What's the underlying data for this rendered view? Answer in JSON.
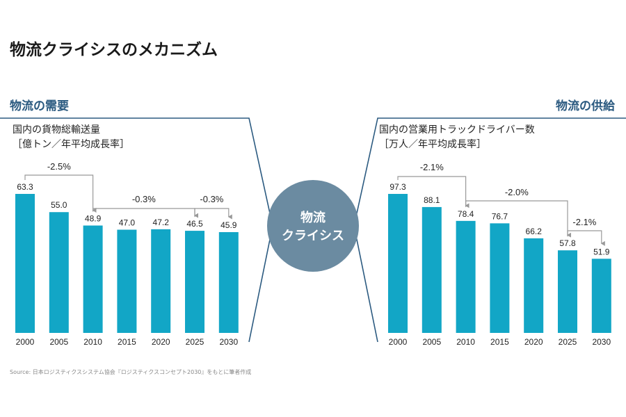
{
  "title": "物流クライシスのメカニズム",
  "left_section": "物流の需要",
  "right_section": "物流の供給",
  "center_label": [
    "物流",
    "クライシス"
  ],
  "source": "Source: 日本ロジスティクスシステム協会『ロジスティクスコンセプト2030』をもとに筆者作成",
  "colors": {
    "bar": "#12a6c6",
    "accent": "#2b5a80",
    "circle": "#6b8ba1",
    "arrow": "#999999"
  },
  "chart_data": [
    {
      "type": "bar",
      "title": "国内の貨物総輸送量",
      "unit_label": "［億トン／年平均成長率］",
      "categories": [
        "2000",
        "2005",
        "2010",
        "2015",
        "2020",
        "2025",
        "2030"
      ],
      "values": [
        63.3,
        55.0,
        48.9,
        47.0,
        47.2,
        46.5,
        45.9
      ],
      "value_labels": [
        "63.3",
        "55.0",
        "48.9",
        "47.0",
        "47.2",
        "46.5",
        "45.9"
      ],
      "growth_annotations": [
        {
          "from": "2000",
          "to": "2010",
          "label": "-2.5%"
        },
        {
          "from": "2010",
          "to": "2025",
          "label": "-0.3%"
        },
        {
          "from": "2025",
          "to": "2030",
          "label": "-0.3%"
        }
      ],
      "ylim": [
        0,
        63.3
      ]
    },
    {
      "type": "bar",
      "title": "国内の営業用トラックドライバー数",
      "unit_label": "［万人／年平均成長率］",
      "categories": [
        "2000",
        "2005",
        "2010",
        "2015",
        "2020",
        "2025",
        "2030"
      ],
      "values": [
        97.3,
        88.1,
        78.4,
        76.7,
        66.2,
        57.8,
        51.9
      ],
      "value_labels": [
        "97.3",
        "88.1",
        "78.4",
        "76.7",
        "66.2",
        "57.8",
        "51.9"
      ],
      "growth_annotations": [
        {
          "from": "2000",
          "to": "2010",
          "label": "-2.1%"
        },
        {
          "from": "2010",
          "to": "2025",
          "label": "-2.0%"
        },
        {
          "from": "2025",
          "to": "2030",
          "label": "-2.1%"
        }
      ],
      "ylim": [
        0,
        97.3
      ]
    }
  ]
}
